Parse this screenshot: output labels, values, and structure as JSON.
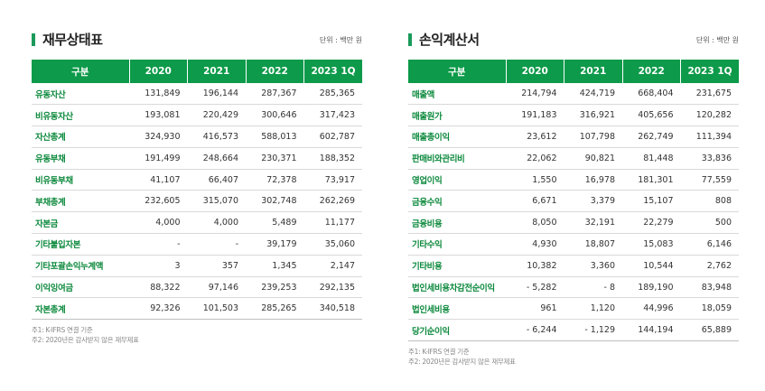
{
  "balance_sheet": {
    "title": "재무상태표",
    "unit": "단위 : 백만 원",
    "headers": [
      "구분",
      "2020",
      "2021",
      "2022",
      "2023 1Q"
    ],
    "rows": [
      [
        "유동자산",
        "131,849",
        "196,144",
        "287,367",
        "285,365"
      ],
      [
        "비유동자산",
        "193,081",
        "220,429",
        "300,646",
        "317,423"
      ],
      [
        "자산총계",
        "324,930",
        "416,573",
        "588,013",
        "602,787"
      ],
      [
        "유동부채",
        "191,499",
        "248,664",
        "230,371",
        "188,352"
      ],
      [
        "비유동부채",
        "41,107",
        "66,407",
        "72,378",
        "73,917"
      ],
      [
        "부채총계",
        "232,605",
        "315,070",
        "302,748",
        "262,269"
      ],
      [
        "자본금",
        "4,000",
        "4,000",
        "5,489",
        "11,177"
      ],
      [
        "기타불입자본",
        "-",
        "-",
        "39,179",
        "35,060"
      ],
      [
        "기타포괄손익누계액",
        "3",
        "357",
        "1,345",
        "2,147"
      ],
      [
        "이익잉여금",
        "88,322",
        "97,146",
        "239,253",
        "292,135"
      ],
      [
        "자본총계",
        "92,326",
        "101,503",
        "285,265",
        "340,518"
      ]
    ],
    "notes": [
      "주1: K-IFRS 연결 기준",
      "주2: 2020년은 감사받지 않은 재무제표"
    ]
  },
  "income_statement": {
    "title": "손익계산서",
    "unit": "단위 : 백만 원",
    "headers": [
      "구분",
      "2020",
      "2021",
      "2022",
      "2023 1Q"
    ],
    "rows": [
      [
        "매출액",
        "214,794",
        "424,719",
        "668,404",
        "231,675"
      ],
      [
        "매출원가",
        "191,183",
        "316,921",
        "405,656",
        "120,282"
      ],
      [
        "매출총이익",
        "23,612",
        "107,798",
        "262,749",
        "111,394"
      ],
      [
        "판매비와관리비",
        "22,062",
        "90,821",
        "81,448",
        "33,836"
      ],
      [
        "영업이익",
        "1,550",
        "16,978",
        "181,301",
        "77,559"
      ],
      [
        "금융수익",
        "6,671",
        "3,379",
        "15,107",
        "808"
      ],
      [
        "금융비용",
        "8,050",
        "32,191",
        "22,279",
        "500"
      ],
      [
        "기타수익",
        "4,930",
        "18,807",
        "15,083",
        "6,146"
      ],
      [
        "기타비용",
        "10,382",
        "3,360",
        "10,544",
        "2,762"
      ],
      [
        "법인세비용차감전순이익",
        "- 5,282",
        "- 8",
        "189,190",
        "83,948"
      ],
      [
        "법인세비용",
        "961",
        "1,120",
        "44,996",
        "18,059"
      ],
      [
        "당기순이익",
        "- 6,244",
        "- 1,129",
        "144,194",
        "65,889"
      ]
    ],
    "notes": [
      "주1: K-IFRS 연결 기준",
      "주2: 2020년은 감사받지 않은 재무제표"
    ],
    "colors": {
      "accent": "#0d9a4a",
      "label": "#0e8a3e"
    }
  }
}
